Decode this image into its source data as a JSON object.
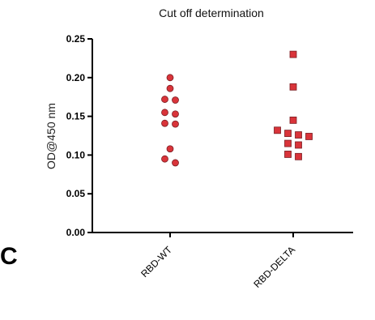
{
  "panel_label": "C",
  "chart_data": {
    "type": "scatter",
    "title": "Cut off determination",
    "xlabel": "",
    "ylabel": "OD@450 nm",
    "ylim": [
      0,
      0.25
    ],
    "yticks": [
      "0.00",
      "0.05",
      "0.10",
      "0.15",
      "0.20",
      "0.25"
    ],
    "grid": false,
    "categories": [
      "RBD-WT",
      "RBD-DELTA"
    ],
    "series": [
      {
        "category": "RBD-WT",
        "marker": "circle",
        "color": "#d9343a",
        "values": [
          0.2,
          0.186,
          0.172,
          0.171,
          0.155,
          0.153,
          0.141,
          0.14,
          0.108,
          0.095,
          0.09
        ]
      },
      {
        "category": "RBD-DELTA",
        "marker": "square",
        "color": "#d9343a",
        "values": [
          0.23,
          0.188,
          0.145,
          0.132,
          0.128,
          0.126,
          0.124,
          0.115,
          0.113,
          0.101,
          0.098
        ]
      }
    ]
  }
}
